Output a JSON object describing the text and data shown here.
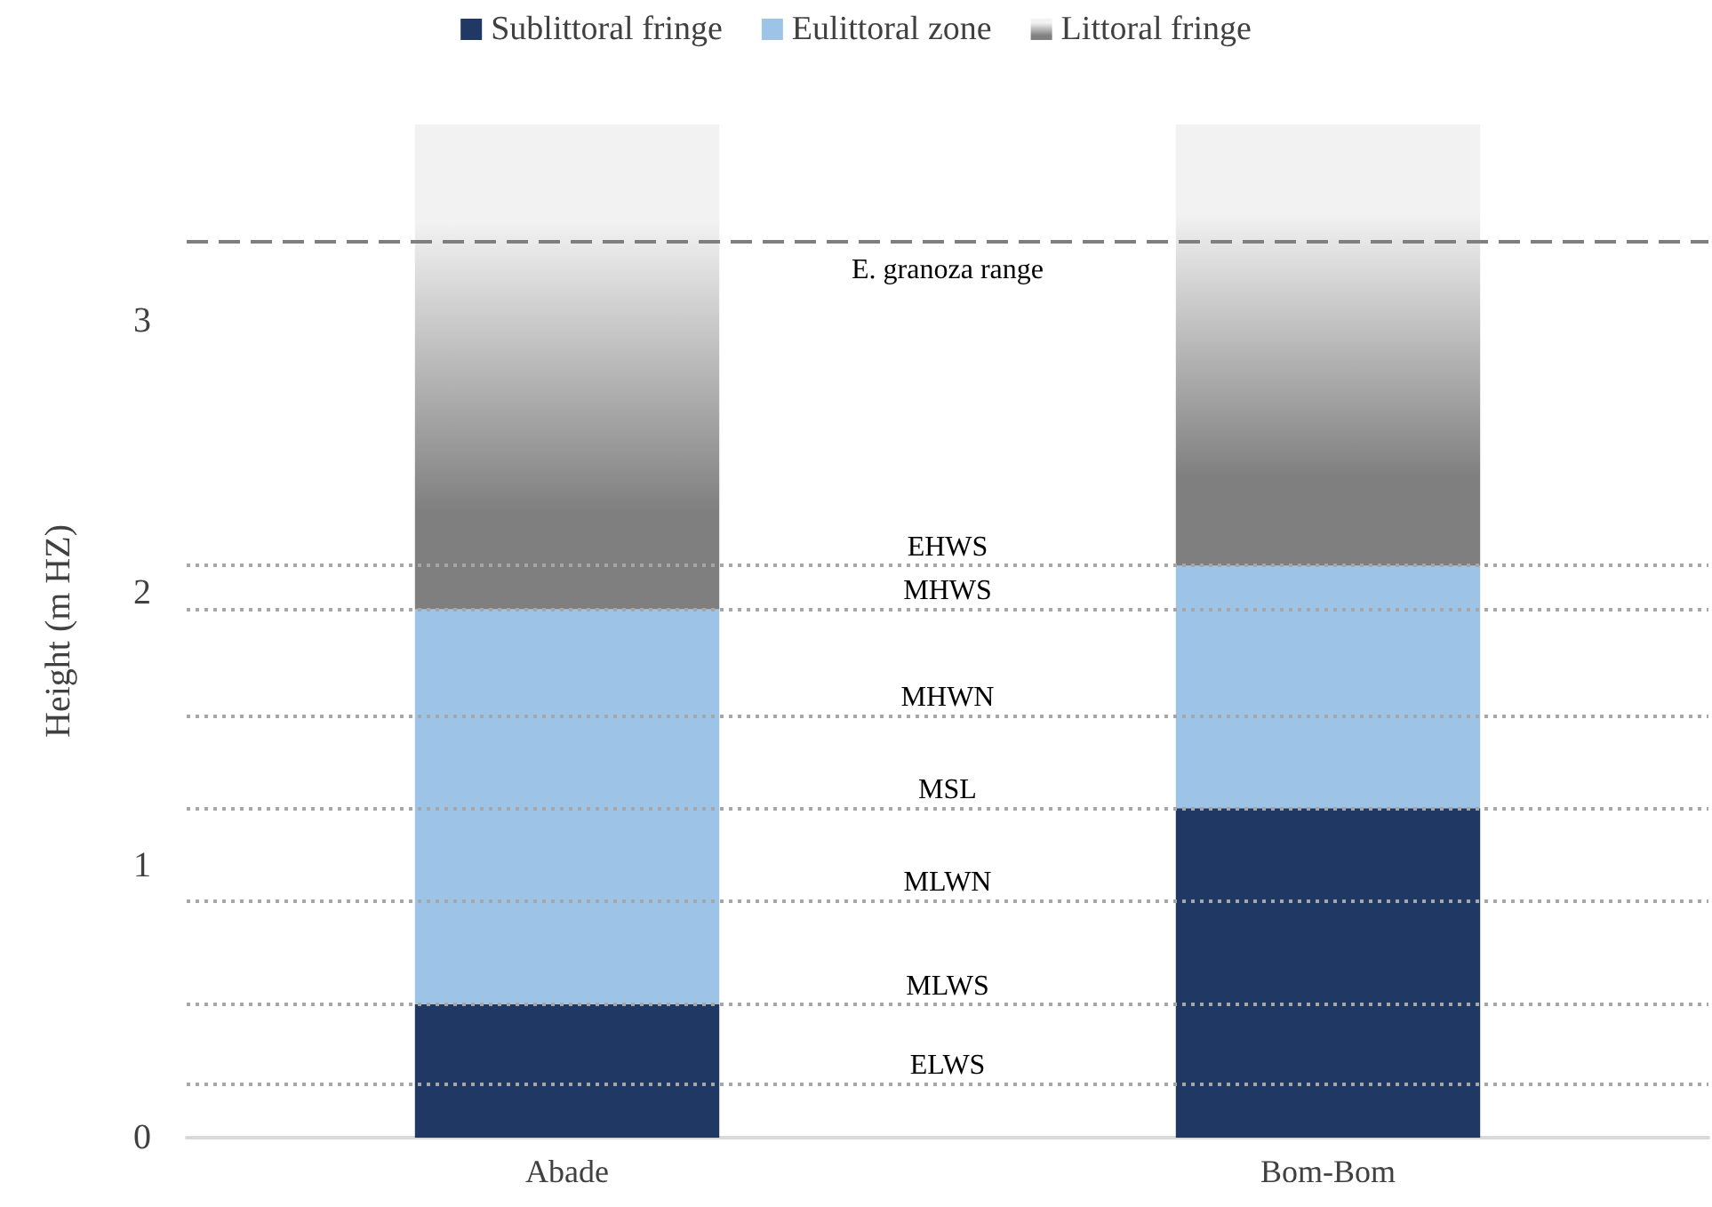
{
  "chart_data": {
    "type": "bar",
    "stacked": true,
    "ylabel": "Height (m HZ)",
    "categories": [
      "Abade",
      "Bom-Bom"
    ],
    "series": [
      {
        "name": "Sublittoral fringe",
        "color": "#1f3864",
        "values": [
          0.49,
          1.21
        ]
      },
      {
        "name": "Eulittoral zone",
        "color": "#9dc3e6",
        "values": [
          1.45,
          0.89
        ]
      },
      {
        "name": "Littoral fringe",
        "color": "#7f7f7f",
        "values": [
          1.78,
          1.62
        ]
      }
    ],
    "ylim": [
      0,
      3.72
    ],
    "yticks": [
      0,
      1,
      2,
      3
    ],
    "grid": false,
    "legend": "top",
    "ref_lines": [
      {
        "axis": "y",
        "value": 2.1,
        "label": "EHWS",
        "color": "#a6a6a6",
        "line_style": "dotted"
      },
      {
        "axis": "y",
        "value": 1.94,
        "label": "MHWS",
        "color": "#a6a6a6",
        "line_style": "dotted"
      },
      {
        "axis": "y",
        "value": 1.55,
        "label": "MHWN",
        "color": "#a6a6a6",
        "line_style": "dotted"
      },
      {
        "axis": "y",
        "value": 1.21,
        "label": "MSL",
        "color": "#a6a6a6",
        "line_style": "dotted"
      },
      {
        "axis": "y",
        "value": 0.87,
        "label": "MLWN",
        "color": "#a6a6a6",
        "line_style": "dotted"
      },
      {
        "axis": "y",
        "value": 0.49,
        "label": "MLWS",
        "color": "#a6a6a6",
        "line_style": "dotted"
      },
      {
        "axis": "y",
        "value": 0.2,
        "label": "ELWS",
        "color": "#a6a6a6",
        "line_style": "dotted"
      },
      {
        "axis": "y",
        "value": 3.29,
        "label": "E. granoza range",
        "color": "#7f7f7f",
        "line_style": "dashed"
      }
    ]
  }
}
